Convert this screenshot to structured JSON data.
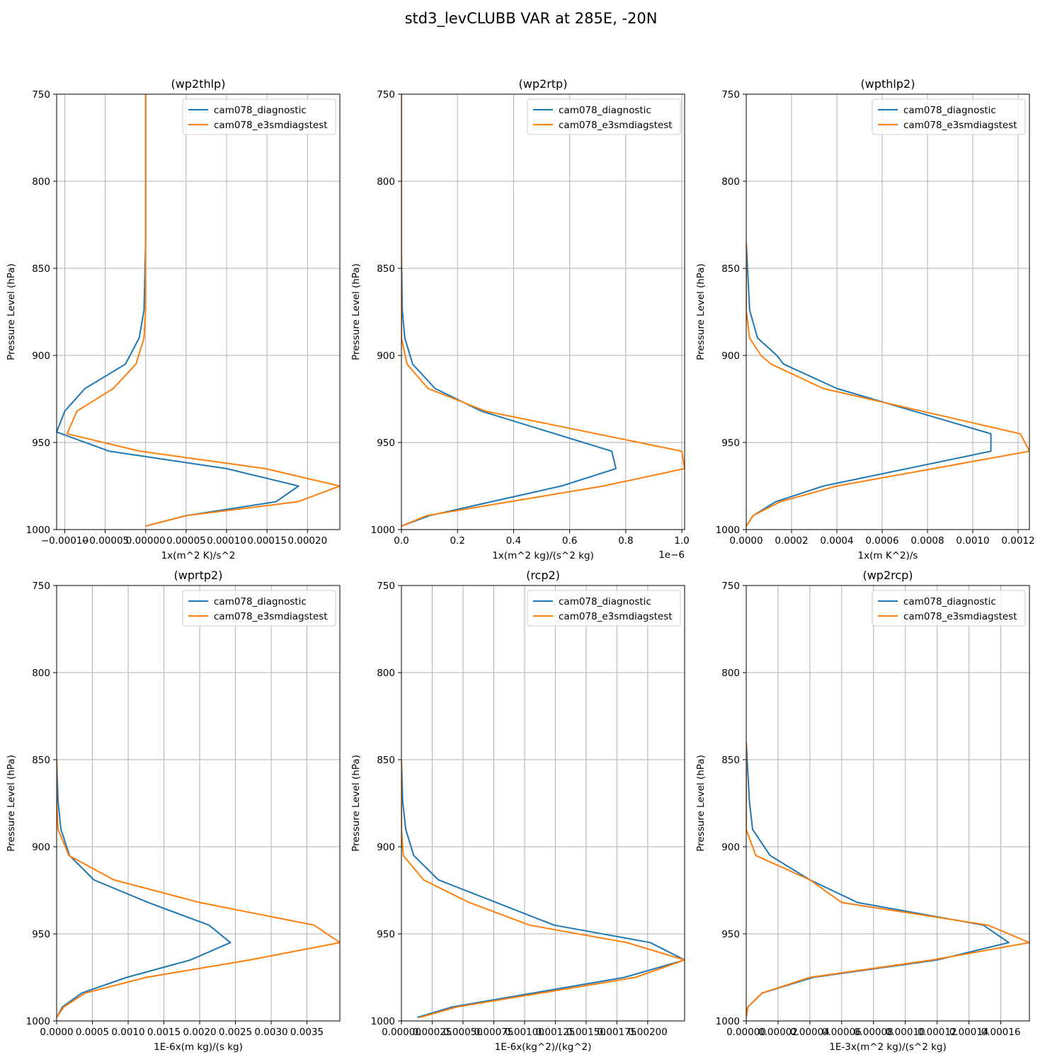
{
  "figure": {
    "title": "std3_levCLUBB VAR at 285E, -20N"
  },
  "colors": {
    "series_1": "#1f77b4",
    "series_2": "#ff7f0e"
  },
  "chart_data": [
    {
      "type": "line",
      "title": "(wp2thlp)",
      "xlabel": "1x(m^2 K)/s^2",
      "ylabel": "Pressure Level (hPa)",
      "offset_text": "",
      "xlim": [
        -0.00011,
        0.00024
      ],
      "ylim": [
        1000,
        750
      ],
      "xticks": [
        -0.0001,
        -5e-05,
        0.0,
        5e-05,
        0.0001,
        0.00015,
        0.0002
      ],
      "xtick_labels": [
        "−0.00010",
        "−0.00005",
        "0.00000",
        "0.00005",
        "0.00010",
        "0.00015",
        "0.00020"
      ],
      "yticks": [
        750,
        800,
        850,
        900,
        950,
        1000
      ],
      "ytick_labels": [
        "750",
        "800",
        "850",
        "900",
        "950",
        "1000"
      ],
      "grid": true,
      "legend_position": "upper right",
      "series": [
        {
          "name": "cam078_diagnostic",
          "color": "#1f77b4",
          "x": [
            0.0,
            0.0,
            -2e-06,
            -8e-06,
            -2.5e-05,
            -7.5e-05,
            -0.0001,
            -0.00011,
            -4.5e-05,
            0.0001,
            0.000189,
            0.000161,
            5e-05,
            0.0
          ],
          "y": [
            750,
            835,
            874,
            890,
            905,
            919,
            932,
            944,
            955,
            965,
            975,
            984,
            992,
            998
          ]
        },
        {
          "name": "cam078_e3smdiagstest",
          "color": "#ff7f0e",
          "x": [
            0.0,
            0.0,
            0.0,
            -2e-06,
            -1.2e-05,
            -4e-05,
            -8.5e-05,
            -9.7e-05,
            -7e-06,
            0.000148,
            0.00024,
            0.000188,
            5e-05,
            0.0
          ],
          "y": [
            750,
            835,
            874,
            890,
            905,
            919,
            932,
            945,
            955,
            965,
            975,
            984,
            992,
            998
          ]
        }
      ]
    },
    {
      "type": "line",
      "title": "(wp2rtp)",
      "xlabel": "1x(m^2 kg)/(s^2 kg)",
      "ylabel": "Pressure Level (hPa)",
      "offset_text": "1e−6",
      "xlim": [
        0.0,
        1.01
      ],
      "ylim": [
        1000,
        750
      ],
      "xticks": [
        0.0,
        0.2,
        0.4,
        0.6,
        0.8,
        1.0
      ],
      "xtick_labels": [
        "0.0",
        "0.2",
        "0.4",
        "0.6",
        "0.8",
        "1.0"
      ],
      "yticks": [
        750,
        800,
        850,
        900,
        950,
        1000
      ],
      "ytick_labels": [
        "750",
        "800",
        "850",
        "900",
        "950",
        "1000"
      ],
      "grid": true,
      "legend_position": "upper right",
      "series": [
        {
          "name": "cam078_diagnostic",
          "color": "#1f77b4",
          "x": [
            0.0,
            0.0,
            0.003,
            0.012,
            0.04,
            0.12,
            0.285,
            0.75,
            0.765,
            0.57,
            0.1,
            0.0
          ],
          "y": [
            750,
            840,
            874,
            890,
            905,
            919,
            932,
            955,
            965,
            975,
            992,
            998
          ]
        },
        {
          "name": "cam078_e3smdiagstest",
          "color": "#ff7f0e",
          "x": [
            0.0,
            0.0,
            0.0,
            0.0,
            0.02,
            0.095,
            0.3,
            1.0,
            1.01,
            0.72,
            0.09,
            0.0
          ],
          "y": [
            750,
            840,
            874,
            890,
            905,
            919,
            932,
            955,
            965,
            975,
            992,
            998
          ]
        }
      ]
    },
    {
      "type": "line",
      "title": "(wpthlp2)",
      "xlabel": "1x(m K^2)/s",
      "ylabel": "Pressure Level (hPa)",
      "offset_text": "",
      "xlim": [
        0.0,
        0.00125
      ],
      "ylim": [
        1000,
        750
      ],
      "xticks": [
        0.0,
        0.0002,
        0.0004,
        0.0006,
        0.0008,
        0.001,
        0.0012
      ],
      "xtick_labels": [
        "0.0000",
        "0.0002",
        "0.0004",
        "0.0006",
        "0.0008",
        "0.0010",
        "0.0012"
      ],
      "yticks": [
        750,
        800,
        850,
        900,
        950,
        1000
      ],
      "ytick_labels": [
        "750",
        "800",
        "850",
        "900",
        "950",
        "1000"
      ],
      "grid": true,
      "legend_position": "upper right",
      "series": [
        {
          "name": "cam078_diagnostic",
          "color": "#1f77b4",
          "x": [
            0.0,
            1.5e-05,
            5e-05,
            0.000135,
            0.000165,
            0.0004,
            0.00108,
            0.00108,
            0.00034,
            0.00013,
            3e-05,
            0.0
          ],
          "y": [
            835,
            874,
            890,
            900,
            905,
            919,
            945,
            955,
            975,
            984,
            992,
            998
          ]
        },
        {
          "name": "cam078_e3smdiagstest",
          "color": "#ff7f0e",
          "x": [
            0.0,
            0.0,
            1.5e-05,
            6.5e-05,
            0.00011,
            0.00034,
            0.00121,
            0.00125,
            0.0004,
            0.00015,
            3e-05,
            0.0
          ],
          "y": [
            835,
            874,
            890,
            900,
            905,
            919,
            945,
            955,
            975,
            984,
            992,
            998
          ]
        }
      ]
    },
    {
      "type": "line",
      "title": "(wprtp2)",
      "xlabel": "1E-6x(m kg)/(s kg)",
      "ylabel": "Pressure Level (hPa)",
      "offset_text": "",
      "xlim": [
        0.0,
        0.00396
      ],
      "ylim": [
        1000,
        750
      ],
      "xticks": [
        0.0,
        0.0005,
        0.001,
        0.0015,
        0.002,
        0.0025,
        0.003,
        0.0035
      ],
      "xtick_labels": [
        "0.0000",
        "0.0005",
        "0.0010",
        "0.0015",
        "0.0020",
        "0.0025",
        "0.0030",
        "0.0035"
      ],
      "yticks": [
        750,
        800,
        850,
        900,
        950,
        1000
      ],
      "ytick_labels": [
        "750",
        "800",
        "850",
        "900",
        "950",
        "1000"
      ],
      "grid": true,
      "legend_position": "upper right",
      "series": [
        {
          "name": "cam078_diagnostic",
          "color": "#1f77b4",
          "x": [
            0.0,
            2e-05,
            6e-05,
            0.00018,
            0.00052,
            0.00128,
            0.00213,
            0.00243,
            0.00187,
            0.00098,
            0.00035,
            8e-05,
            0.0
          ],
          "y": [
            850,
            874,
            890,
            905,
            919,
            932,
            945,
            955,
            965,
            975,
            984,
            992,
            998
          ]
        },
        {
          "name": "cam078_e3smdiagstest",
          "color": "#ff7f0e",
          "x": [
            0.0,
            0.0,
            2e-05,
            0.00017,
            0.0008,
            0.002,
            0.0036,
            0.00396,
            0.0027,
            0.00125,
            0.0004,
            0.0001,
            0.0
          ],
          "y": [
            850,
            874,
            890,
            905,
            919,
            932,
            945,
            955,
            965,
            975,
            984,
            992,
            998
          ]
        }
      ]
    },
    {
      "type": "line",
      "title": "(rcp2)",
      "xlabel": "1E-6x(kg^2)/(kg^2)",
      "ylabel": "Pressure Level (hPa)",
      "offset_text": "",
      "xlim": [
        0.0,
        0.0023
      ],
      "ylim": [
        1000,
        750
      ],
      "xticks": [
        0.0,
        0.00025,
        0.0005,
        0.00075,
        0.001,
        0.00125,
        0.0015,
        0.00175,
        0.002
      ],
      "xtick_labels": [
        "0.00000",
        "0.00025",
        "0.00050",
        "0.00075",
        "0.00100",
        "0.00125",
        "0.00150",
        "0.00175",
        "0.00200"
      ],
      "yticks": [
        750,
        800,
        850,
        900,
        950,
        1000
      ],
      "ytick_labels": [
        "750",
        "800",
        "850",
        "900",
        "950",
        "1000"
      ],
      "grid": true,
      "legend_position": "upper right",
      "series": [
        {
          "name": "cam078_diagnostic",
          "color": "#1f77b4",
          "x": [
            0.0,
            1e-05,
            3.5e-05,
            0.0001,
            0.0003,
            0.00077,
            0.00124,
            0.00202,
            0.0023,
            0.00181,
            0.00041,
            0.00013
          ],
          "y": [
            850,
            874,
            890,
            905,
            919,
            932,
            945,
            955,
            965,
            975,
            992,
            998
          ]
        },
        {
          "name": "cam078_e3smdiagstest",
          "color": "#ff7f0e",
          "x": [
            0.0,
            0.0,
            0.0,
            1.5e-05,
            0.00018,
            0.00055,
            0.00104,
            0.00183,
            0.0023,
            0.0019,
            0.00045,
            0.00015
          ],
          "y": [
            850,
            874,
            890,
            905,
            919,
            932,
            945,
            955,
            965,
            975,
            992,
            998
          ]
        }
      ]
    },
    {
      "type": "line",
      "title": "(wp2rcp)",
      "xlabel": "1E-3x(m^2 kg)/(s^2 kg)",
      "ylabel": "Pressure Level (hPa)",
      "offset_text": "",
      "xlim": [
        0.0,
        0.000178
      ],
      "ylim": [
        1000,
        750
      ],
      "xticks": [
        0.0,
        2e-05,
        4e-05,
        6e-05,
        8e-05,
        0.0001,
        0.00012,
        0.00014,
        0.00016
      ],
      "xtick_labels": [
        "0.00000",
        "0.00002",
        "0.00004",
        "0.00006",
        "0.00008",
        "0.00010",
        "0.00012",
        "0.00014",
        "0.00016"
      ],
      "yticks": [
        750,
        800,
        850,
        900,
        950,
        1000
      ],
      "ytick_labels": [
        "750",
        "800",
        "850",
        "900",
        "950",
        "1000"
      ],
      "grid": true,
      "legend_position": "upper right",
      "series": [
        {
          "name": "cam078_diagnostic",
          "color": "#1f77b4",
          "x": [
            0.0,
            2e-06,
            4e-06,
            1.5e-05,
            4e-05,
            7e-05,
            0.000149,
            0.000165,
            0.00012,
            4.2e-05,
            1e-05,
            1e-06,
            0.0
          ],
          "y": [
            840,
            874,
            890,
            905,
            919,
            932,
            945,
            955,
            965,
            975,
            984,
            992,
            998
          ]
        },
        {
          "name": "cam078_e3smdiagstest",
          "color": "#ff7f0e",
          "x": [
            0.0,
            0.0,
            0.0,
            6e-06,
            4e-05,
            6e-05,
            0.000152,
            0.000178,
            0.000117,
            4e-05,
            1e-05,
            1e-06,
            0.0
          ],
          "y": [
            840,
            874,
            890,
            905,
            919,
            932,
            945,
            955,
            965,
            975,
            984,
            992,
            998
          ]
        }
      ]
    }
  ]
}
